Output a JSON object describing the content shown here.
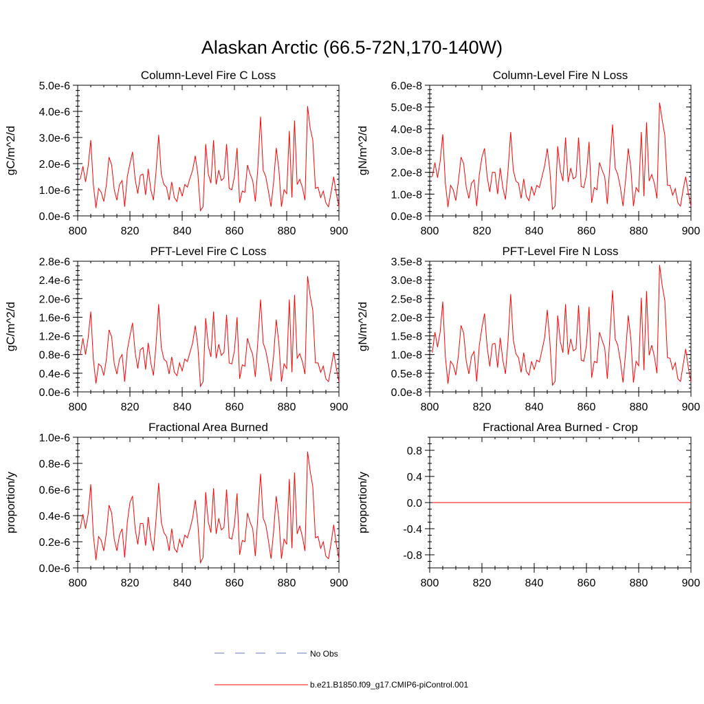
{
  "figure": {
    "title": "Alaskan Arctic (66.5-72N,170-140W)",
    "line_color": "#ff0000",
    "obs_color": "#6677cc"
  },
  "legend": {
    "obs_label": "No Obs",
    "model_label": "b.e21.B1850.f09_g17.CMIP6-piControl.001"
  },
  "chart_data": [
    {
      "type": "line",
      "title": "Column-Level Fire C Loss",
      "ylabel": "gC/m^2/d",
      "xlabel": "",
      "xlim": [
        800,
        900
      ],
      "ylim": [
        0,
        5e-06
      ],
      "xticks": [
        800,
        820,
        840,
        860,
        880,
        900
      ],
      "yticks": [
        0,
        1e-06,
        2e-06,
        3e-06,
        4e-06,
        5e-06
      ],
      "yticklabels": [
        "0.0e-6",
        "1.0e-6",
        "2.0e-6",
        "3.0e-6",
        "4.0e-6",
        "5.0e-6"
      ],
      "yminor": 5,
      "series": [
        {
          "name": "b.e21.B1850.f09_g17.CMIP6-piControl.001",
          "x_start": 801,
          "x_step": 1,
          "values": [
            1.4e-06,
            1.9e-06,
            1.3e-06,
            1.9e-06,
            2.9e-06,
            1.2e-06,
            3e-07,
            1.05e-06,
            9e-07,
            5.5e-07,
            1.2e-06,
            2.25e-06,
            1.95e-06,
            1e-06,
            6e-07,
            1.2e-06,
            1.35e-06,
            3.5e-07,
            1.5e-06,
            2e-06,
            2.45e-06,
            1.4e-06,
            8.5e-07,
            1.55e-06,
            1.6e-06,
            8e-07,
            1.8e-06,
            1e-06,
            6e-07,
            1.7e-06,
            3.1e-06,
            1.6e-06,
            1.2e-06,
            1.1e-06,
            6e-07,
            1.3e-06,
            7e-07,
            5.5e-07,
            1.1e-06,
            7.5e-07,
            1.2e-06,
            1.1e-06,
            1.45e-06,
            1.75e-06,
            2.3e-06,
            1.6e-06,
            2e-07,
            3.5e-07,
            2.75e-06,
            1.6e-06,
            1.25e-06,
            2.9e-06,
            1.2e-06,
            1.75e-06,
            1.35e-06,
            1.45e-06,
            2.75e-06,
            1.05e-06,
            1e-06,
            1.5e-06,
            2.6e-06,
            5e-07,
            9.5e-07,
            9e-07,
            1.95e-06,
            1.6e-06,
            1.35e-06,
            5.5e-07,
            1.9e-06,
            3.8e-06,
            1.75e-06,
            1.5e-06,
            9.5e-07,
            3.5e-07,
            1.3e-06,
            2.6e-06,
            1.8e-06,
            3.5e-07,
            1e-06,
            8.5e-07,
            3.25e-06,
            7e-07,
            3.65e-06,
            1.2e-06,
            1.4e-06,
            1.1e-06,
            6e-07,
            4.2e-06,
            3.35e-06,
            2.9e-06,
            1.05e-06,
            1.1e-06,
            7e-07,
            9.5e-07,
            5e-07,
            3.5e-07,
            9e-07,
            1.5e-06,
            8.5e-07,
            3.5e-07
          ]
        }
      ]
    },
    {
      "type": "line",
      "title": "Column-Level Fire N Loss",
      "ylabel": "gN/m^2/d",
      "xlabel": "",
      "xlim": [
        800,
        900
      ],
      "ylim": [
        0,
        6e-08
      ],
      "xticks": [
        800,
        820,
        840,
        860,
        880,
        900
      ],
      "yticks": [
        0,
        1e-08,
        2e-08,
        3e-08,
        4e-08,
        5e-08,
        6e-08
      ],
      "yticklabels": [
        "0.0e-8",
        "1.0e-8",
        "2.0e-8",
        "3.0e-8",
        "4.0e-8",
        "5.0e-8",
        "6.0e-8"
      ],
      "yminor": 5,
      "series": [
        {
          "name": "b.e21.B1850.f09_g17.CMIP6-piControl.001",
          "x_start": 801,
          "x_step": 1,
          "values": [
            1.8e-08,
            2.45e-08,
            1.75e-08,
            2.5e-08,
            3.75e-08,
            1.5e-08,
            4e-09,
            1.4e-08,
            1.2e-08,
            7e-09,
            1.6e-08,
            2.7e-08,
            2.4e-08,
            1.3e-08,
            8e-09,
            1.5e-08,
            1.65e-08,
            4.5e-09,
            1.9e-08,
            2.7e-08,
            3.1e-08,
            1.8e-08,
            1.1e-08,
            2e-08,
            2e-08,
            1e-08,
            2.2e-08,
            1.3e-08,
            7.5e-09,
            2.1e-08,
            3.85e-08,
            2.1e-08,
            1.6e-08,
            1.5e-08,
            8e-09,
            1.7e-08,
            9e-09,
            7e-09,
            1.35e-08,
            9.5e-09,
            1.4e-08,
            1.3e-08,
            1.8e-08,
            2.3e-08,
            3.1e-08,
            2.1e-08,
            3e-09,
            4.5e-09,
            3.2e-08,
            2.1e-08,
            1.6e-08,
            3.6e-08,
            1.55e-08,
            2.2e-08,
            1.7e-08,
            1.8e-08,
            3.6e-08,
            1.35e-08,
            1.3e-08,
            1.9e-08,
            3.4e-08,
            6e-09,
            1.3e-08,
            1.2e-08,
            2.45e-08,
            2.1e-08,
            1.8e-08,
            5.5e-09,
            2.4e-08,
            4.2e-08,
            2.2e-08,
            1.9e-08,
            1.3e-08,
            4.5e-09,
            1.65e-08,
            3.1e-08,
            2.2e-08,
            4.5e-09,
            1.3e-08,
            1.1e-08,
            3.85e-08,
            9e-09,
            4.3e-08,
            1.6e-08,
            1.9e-08,
            1.5e-08,
            8e-09,
            5.2e-08,
            4.4e-08,
            3.7e-08,
            1.4e-08,
            1.4e-08,
            9.5e-09,
            1.25e-08,
            6e-09,
            4.5e-09,
            1.2e-08,
            1.8e-08,
            1.05e-08,
            4.5e-09
          ]
        }
      ]
    },
    {
      "type": "line",
      "title": "PFT-Level Fire C Loss",
      "ylabel": "gC/m^2/d",
      "xlabel": "",
      "xlim": [
        800,
        900
      ],
      "ylim": [
        0,
        2.8e-06
      ],
      "xticks": [
        800,
        820,
        840,
        860,
        880,
        900
      ],
      "yticks": [
        0,
        4e-07,
        8e-07,
        1.2e-06,
        1.6e-06,
        2e-06,
        2.4e-06,
        2.8e-06
      ],
      "yticklabels": [
        "0.0e-6",
        "0.4e-6",
        "0.8e-6",
        "1.2e-6",
        "1.6e-6",
        "2.0e-6",
        "2.4e-6",
        "2.8e-6"
      ],
      "yminor": 4,
      "series": [
        {
          "name": "b.e21.B1850.f09_g17.CMIP6-piControl.001",
          "x_start": 801,
          "x_step": 1,
          "values": [
            8e-07,
            1.15e-06,
            8e-07,
            1.15e-06,
            1.72e-06,
            7e-07,
            1.8e-07,
            6e-07,
            5.5e-07,
            3.5e-07,
            7e-07,
            1.33e-06,
            1.18e-06,
            6e-07,
            3.8e-07,
            7e-07,
            8e-07,
            2.2e-07,
            9e-07,
            1.2e-06,
            1.48e-06,
            8.5e-07,
            5e-07,
            9e-07,
            9.5e-07,
            4.8e-07,
            1.05e-06,
            6.2e-07,
            3.5e-07,
            1.02e-06,
            1.88e-06,
            9.5e-07,
            7e-07,
            6.5e-07,
            3.8e-07,
            7.5e-07,
            4.2e-07,
            3.5e-07,
            6.2e-07,
            4.5e-07,
            7e-07,
            6.5e-07,
            8.5e-07,
            1.05e-06,
            1.42e-06,
            9.8e-07,
            1.2e-07,
            2.2e-07,
            1.58e-06,
            9.8e-07,
            7.5e-07,
            1.72e-06,
            7.2e-07,
            1.02e-06,
            7.8e-07,
            8.5e-07,
            1.65e-06,
            6.2e-07,
            6e-07,
            8.8e-07,
            1.6e-06,
            2.8e-07,
            5.8e-07,
            5.5e-07,
            1.15e-06,
            9.5e-07,
            8e-07,
            3.2e-07,
            1.12e-06,
            1.98e-06,
            1.05e-06,
            8.8e-07,
            5.8e-07,
            2.2e-07,
            7.8e-07,
            1.55e-06,
            1.05e-06,
            2.2e-07,
            6e-07,
            5e-07,
            1.98e-06,
            4.2e-07,
            2.08e-06,
            7.2e-07,
            8.2e-07,
            6.5e-07,
            3.8e-07,
            2.48e-06,
            2.05e-06,
            1.75e-06,
            6.2e-07,
            6.2e-07,
            4.2e-07,
            5.5e-07,
            2.8e-07,
            2.2e-07,
            5.2e-07,
            8.5e-07,
            5e-07,
            2.2e-07
          ]
        }
      ]
    },
    {
      "type": "line",
      "title": "PFT-Level Fire N Loss",
      "ylabel": "gN/m^2/d",
      "xlabel": "",
      "xlim": [
        800,
        900
      ],
      "ylim": [
        0,
        3.5e-08
      ],
      "xticks": [
        800,
        820,
        840,
        860,
        880,
        900
      ],
      "yticks": [
        0,
        5e-09,
        1e-08,
        1.5e-08,
        2e-08,
        2.5e-08,
        3e-08,
        3.5e-08
      ],
      "yticklabels": [
        "0.0e-8",
        "0.5e-8",
        "1.0e-8",
        "1.5e-8",
        "2.0e-8",
        "2.5e-8",
        "3.0e-8",
        "3.5e-8"
      ],
      "yminor": 5,
      "series": [
        {
          "name": "b.e21.B1850.f09_g17.CMIP6-piControl.001",
          "x_start": 801,
          "x_step": 1,
          "values": [
            1.05e-08,
            1.6e-08,
            1.2e-08,
            1.6e-08,
            2.42e-08,
            9.5e-09,
            2.2e-09,
            8.2e-09,
            7.2e-09,
            4.5e-09,
            9.8e-09,
            1.78e-08,
            1.58e-08,
            8.2e-09,
            4.8e-09,
            9.5e-09,
            1.08e-08,
            2.8e-09,
            1.25e-08,
            1.72e-08,
            2.1e-08,
            1.2e-08,
            6.8e-09,
            1.28e-08,
            1.3e-08,
            6.5e-09,
            1.45e-08,
            8.5e-09,
            4.8e-09,
            1.38e-08,
            2.62e-08,
            1.4e-08,
            1.02e-08,
            9.2e-09,
            5.2e-09,
            1.05e-08,
            5.5e-09,
            4.5e-09,
            8.2e-09,
            6e-09,
            8.5e-09,
            8e-09,
            1.12e-08,
            1.45e-08,
            2.2e-08,
            1.35e-08,
            1.8e-09,
            2.8e-09,
            2.05e-08,
            1.35e-08,
            1.05e-08,
            2.35e-08,
            1e-08,
            1.42e-08,
            1.1e-08,
            1.15e-08,
            2.32e-08,
            8.5e-09,
            8.2e-09,
            1.25e-08,
            2.28e-08,
            3.8e-09,
            8.2e-09,
            7.8e-09,
            1.6e-08,
            1.38e-08,
            1.18e-08,
            3.5e-09,
            1.52e-08,
            2.72e-08,
            1.42e-08,
            1.25e-08,
            8.2e-09,
            2.5e-09,
            1.05e-08,
            2.05e-08,
            1.42e-08,
            2.5e-09,
            8.2e-09,
            7e-09,
            2.52e-08,
            5.8e-09,
            2.7e-08,
            9.8e-09,
            1.25e-08,
            9.5e-09,
            5e-09,
            3.4e-08,
            2.85e-08,
            2.45e-08,
            9.2e-09,
            9e-09,
            6e-09,
            7.8e-09,
            3.5e-09,
            2.8e-09,
            7.2e-09,
            1.15e-08,
            6.5e-09,
            2.8e-09
          ]
        }
      ]
    },
    {
      "type": "line",
      "title": "Fractional Area Burned",
      "ylabel": "proportion/y",
      "xlabel": "",
      "xlim": [
        800,
        900
      ],
      "ylim": [
        0,
        1e-06
      ],
      "xticks": [
        800,
        820,
        840,
        860,
        880,
        900
      ],
      "yticks": [
        0,
        2e-07,
        4e-07,
        6e-07,
        8e-07,
        1e-06
      ],
      "yticklabels": [
        "0.0e-6",
        "0.2e-6",
        "0.4e-6",
        "0.6e-6",
        "0.8e-6",
        "1.0e-6"
      ],
      "yminor": 4,
      "series": [
        {
          "name": "b.e21.B1850.f09_g17.CMIP6-piControl.001",
          "x_start": 801,
          "x_step": 1,
          "values": [
            3e-07,
            4.1e-07,
            3e-07,
            4.1e-07,
            6.4e-07,
            2.5e-07,
            6e-08,
            2.4e-07,
            2.1e-07,
            1.3e-07,
            2.7e-07,
            4.8e-07,
            4.2e-07,
            2.2e-07,
            1.3e-07,
            2.5e-07,
            3e-07,
            8e-08,
            3.5e-07,
            5e-07,
            5.5e-07,
            3e-07,
            1.8e-07,
            3.4e-07,
            3.4e-07,
            1.7e-07,
            3.9e-07,
            2.2e-07,
            1.3e-07,
            3.7e-07,
            6.5e-07,
            3.5e-07,
            2.7e-07,
            2.4e-07,
            1.3e-07,
            3e-07,
            1.5e-07,
            1.2e-07,
            2.2e-07,
            1.6e-07,
            2.5e-07,
            2.3e-07,
            3e-07,
            3.8e-07,
            5.2e-07,
            3.4e-07,
            4e-08,
            8e-08,
            5.8e-07,
            3.5e-07,
            2.7e-07,
            6.1e-07,
            2.6e-07,
            3.8e-07,
            2.9e-07,
            3.1e-07,
            6e-07,
            2.3e-07,
            2.2e-07,
            3.3e-07,
            5.7e-07,
            1e-07,
            2.1e-07,
            2e-07,
            4.2e-07,
            3.5e-07,
            3e-07,
            9e-08,
            4.1e-07,
            7.2e-07,
            3.8e-07,
            3.3e-07,
            2.1e-07,
            7e-08,
            2.8e-07,
            5.5e-07,
            3.8e-07,
            7e-08,
            2.2e-07,
            1.8e-07,
            6.8e-07,
            1.5e-07,
            7.3e-07,
            2.6e-07,
            3.2e-07,
            2.4e-07,
            1.3e-07,
            8.9e-07,
            7.4e-07,
            6.2e-07,
            2.3e-07,
            2.4e-07,
            1.5e-07,
            2e-07,
            9e-08,
            7e-08,
            1.9e-07,
            3.3e-07,
            1.8e-07,
            7e-08
          ]
        }
      ]
    },
    {
      "type": "line",
      "title": "Fractional Area Burned - Crop",
      "ylabel": "proportion/y",
      "xlabel": "",
      "xlim": [
        800,
        900
      ],
      "ylim": [
        -1.0,
        1.0
      ],
      "xticks": [
        800,
        820,
        840,
        860,
        880,
        900
      ],
      "yticks": [
        -0.8,
        -0.4,
        0.0,
        0.4,
        0.8
      ],
      "yticklabels": [
        "-0.8",
        "-0.4",
        "0.0",
        "0.4",
        "0.8"
      ],
      "yminor": 4,
      "series": [
        {
          "name": "b.e21.B1850.f09_g17.CMIP6-piControl.001",
          "x_start": 801,
          "x_step": 1,
          "constant": 0.0,
          "count": 100
        }
      ]
    }
  ]
}
